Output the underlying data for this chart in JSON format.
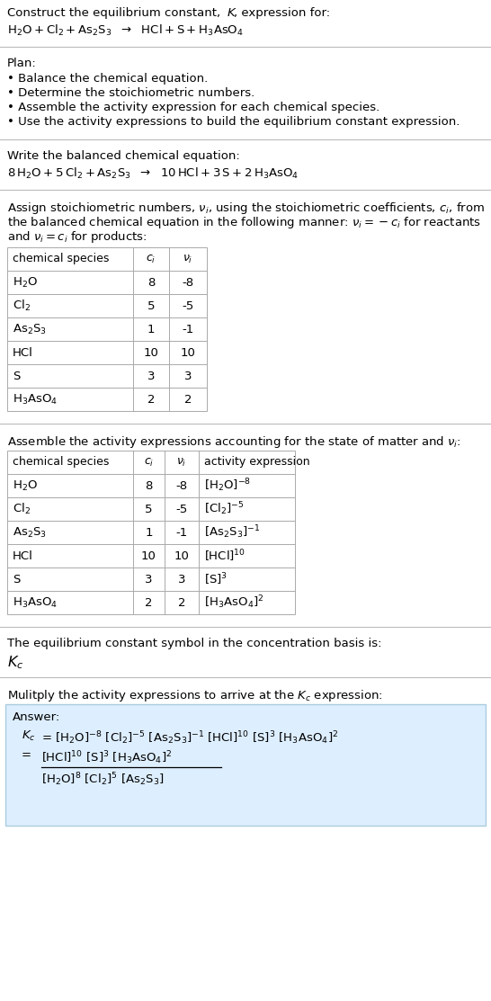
{
  "bg_color": "#ffffff",
  "text_color": "#000000",
  "table_border_color": "#aaaaaa",
  "answer_box_color": "#ddeeff",
  "answer_box_border": "#aaccdd",
  "sep_color": "#cccccc",
  "font_size": 9.5,
  "species_math1": [
    "H_2O",
    "Cl_2",
    "As_2S_3",
    "HCl",
    "S",
    "H_3AsO_4"
  ],
  "table1_ci": [
    "8",
    "5",
    "1",
    "10",
    "3",
    "2"
  ],
  "table1_vi": [
    "-8",
    "-5",
    "-1",
    "10",
    "3",
    "2"
  ],
  "table2_act": [
    "[H_2O]^{-8}",
    "[Cl_2]^{-5}",
    "[As_2S_3]^{-1}",
    "[HCl]^{10}",
    "[S]^3",
    "[H_3AsO_4]^2"
  ]
}
